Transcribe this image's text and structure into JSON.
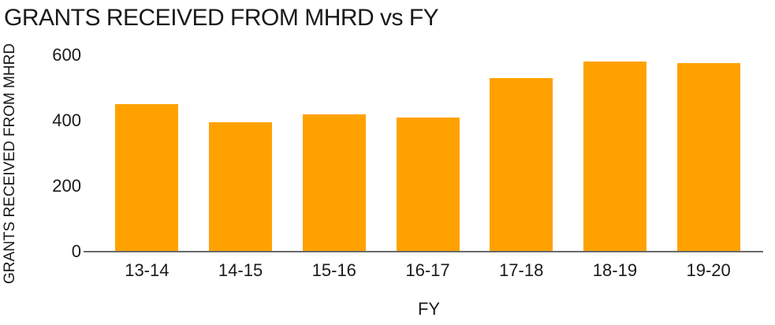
{
  "chart_data": {
    "type": "bar",
    "title": "GRANTS RECEIVED FROM MHRD vs FY",
    "xlabel": "FY",
    "ylabel": "GRANTS RECEIVED FROM MHRD",
    "categories": [
      "13-14",
      "14-15",
      "15-16",
      "16-17",
      "17-18",
      "18-19",
      "19-20"
    ],
    "values": [
      450,
      395,
      420,
      410,
      530,
      580,
      575
    ],
    "ylim": [
      0,
      600
    ],
    "yticks": [
      0,
      200,
      400,
      600
    ],
    "grid": false,
    "legend": false,
    "colors": {
      "bar": "#FFA200",
      "axis_line": "#6B6B6B",
      "text": "#1A1A1A",
      "background": "#FFFFFF"
    }
  }
}
